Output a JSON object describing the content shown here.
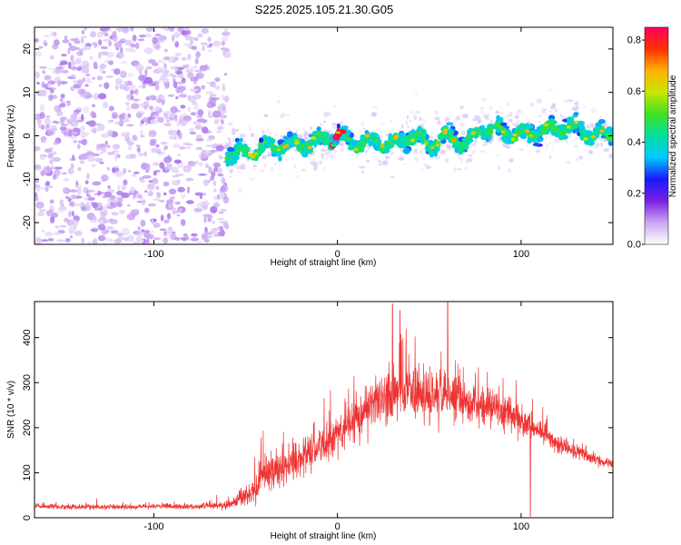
{
  "title": "S225.2025.105.21.30.G05",
  "chart_data": [
    {
      "type": "heatmap",
      "xlabel": "Height of straight line (km)",
      "ylabel": "Frequency (Hz)",
      "xlim": [
        -165,
        150
      ],
      "ylim": [
        -25,
        25
      ],
      "xticks": [
        -100,
        0,
        100
      ],
      "yticks": [
        -20,
        -10,
        0,
        10,
        20
      ],
      "noise_region_x": [
        -165,
        -60
      ],
      "ridge": {
        "x": [
          -60,
          -50,
          -40,
          -30,
          -20,
          -10,
          0,
          10,
          20,
          30,
          40,
          50,
          60,
          70,
          80,
          90,
          100,
          110,
          120,
          130,
          140,
          150
        ],
        "frequency": [
          -4,
          -4,
          -3,
          -2,
          -2,
          -1,
          0,
          -2,
          -1,
          -2,
          0,
          -2,
          0,
          -2,
          2,
          1,
          0,
          1,
          2,
          2,
          0,
          1
        ],
        "peak_x": 0,
        "peak_frequency": 0,
        "peak_amplitude": 0.82
      },
      "colorbar": {
        "label": "Normalized spectral amplitude",
        "range": [
          0,
          0.85
        ],
        "ticks": [
          "0.0",
          "0.2",
          "0.4",
          "0.6",
          "0.8"
        ],
        "colors": [
          "#ffffff",
          "#c9a8f2",
          "#7a1fe0",
          "#1a1aff",
          "#00c8ff",
          "#00e0a0",
          "#40e020",
          "#c8e600",
          "#ffb000",
          "#ff3000",
          "#ff0060"
        ]
      }
    },
    {
      "type": "line",
      "xlabel": "Height of straight line (km)",
      "ylabel": "SNR (10 * v/v)",
      "xlim": [
        -165,
        150
      ],
      "ylim": [
        0,
        480
      ],
      "xticks": [
        -100,
        0,
        100
      ],
      "yticks": [
        0,
        100,
        200,
        300,
        400
      ],
      "color": "#ee3333",
      "envelope": {
        "x": [
          -165,
          -140,
          -120,
          -100,
          -80,
          -60,
          -52,
          -45,
          -40,
          -30,
          -20,
          -10,
          0,
          10,
          20,
          30,
          40,
          50,
          60,
          70,
          80,
          90,
          100,
          110,
          120,
          130,
          140,
          150
        ],
        "mean": [
          25,
          24,
          24,
          25,
          25,
          28,
          45,
          60,
          95,
          110,
          130,
          155,
          180,
          220,
          255,
          270,
          280,
          265,
          275,
          260,
          250,
          240,
          215,
          195,
          165,
          145,
          130,
          120
        ],
        "spread": [
          10,
          10,
          10,
          10,
          10,
          15,
          35,
          55,
          70,
          65,
          75,
          90,
          90,
          100,
          110,
          120,
          110,
          110,
          110,
          90,
          85,
          80,
          60,
          45,
          35,
          30,
          25,
          20
        ]
      },
      "notable_peaks": [
        {
          "x": 60,
          "y": 480
        },
        {
          "x": 30,
          "y": 475
        },
        {
          "x": 34,
          "y": 460
        }
      ],
      "notable_dip": {
        "x": 105,
        "y": 3
      }
    }
  ]
}
